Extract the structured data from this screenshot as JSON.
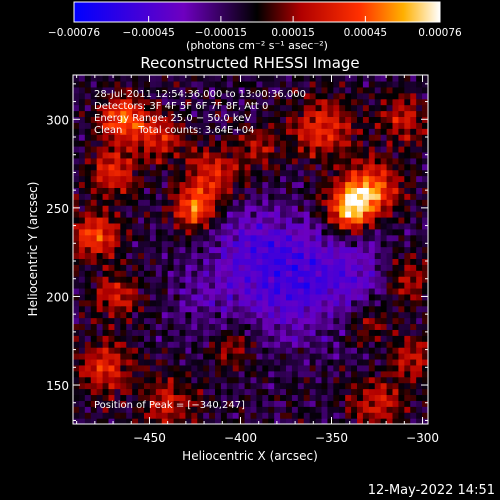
{
  "chart_data": {
    "type": "heatmap",
    "title": "Reconstructed RHESSI Image",
    "xlabel": "Heliocentric X (arcsec)",
    "ylabel": "Heliocentric Y (arcsec)",
    "xlim": [
      -492,
      -297
    ],
    "ylim": [
      128,
      325
    ],
    "x_ticks": [
      -450,
      -400,
      -350,
      -300
    ],
    "x_tick_labels": [
      "−450",
      "−400",
      "−350",
      "−300"
    ],
    "y_ticks": [
      150,
      200,
      250,
      300
    ],
    "y_tick_labels": [
      "150",
      "200",
      "250",
      "300"
    ],
    "colorbar": {
      "range": [
        -0.00076,
        0.00076
      ],
      "ticks": [
        -0.00076,
        -0.00045,
        -0.00015,
        0.00015,
        0.00045,
        0.00076
      ],
      "tick_labels": [
        "−0.00076",
        "−0.00045",
        "−0.00015",
        "0.00015",
        "0.00045",
        "0.00076"
      ],
      "unit_label": "(photons cm⁻² s⁻¹ asec⁻²)"
    },
    "annotations": [
      "28-Jul-2011 12:54:36.000 to 13:00:36.000",
      "Detectors: 3F 4F 5F 6F 7F 8F, Att 0",
      "Energy Range: 25.0 − 50.0 keV",
      "Clean     Total counts: 3.64E+04"
    ],
    "peak_label": "Position of Peak = [−340,247]",
    "peak": {
      "x": -340,
      "y": 247
    },
    "sources": [
      {
        "x": -340,
        "y": 250,
        "amp": 1.0,
        "sigma": 9
      },
      {
        "x": -328,
        "y": 262,
        "amp": 0.75,
        "sigma": 10
      },
      {
        "x": -355,
        "y": 295,
        "amp": 0.55,
        "sigma": 12
      },
      {
        "x": -425,
        "y": 250,
        "amp": 0.75,
        "sigma": 8
      },
      {
        "x": -415,
        "y": 270,
        "amp": 0.55,
        "sigma": 10
      },
      {
        "x": -465,
        "y": 300,
        "amp": 0.75,
        "sigma": 9
      },
      {
        "x": -480,
        "y": 235,
        "amp": 0.7,
        "sigma": 9
      },
      {
        "x": -470,
        "y": 270,
        "amp": 0.55,
        "sigma": 9
      },
      {
        "x": -445,
        "y": 290,
        "amp": 0.5,
        "sigma": 9
      },
      {
        "x": -468,
        "y": 200,
        "amp": 0.45,
        "sigma": 9
      },
      {
        "x": -475,
        "y": 160,
        "amp": 0.55,
        "sigma": 10
      },
      {
        "x": -440,
        "y": 140,
        "amp": 0.45,
        "sigma": 10
      },
      {
        "x": -405,
        "y": 170,
        "amp": 0.35,
        "sigma": 8
      },
      {
        "x": -325,
        "y": 140,
        "amp": 0.45,
        "sigma": 10
      },
      {
        "x": -305,
        "y": 165,
        "amp": 0.4,
        "sigma": 9
      },
      {
        "x": -308,
        "y": 210,
        "amp": 0.4,
        "sigma": 9
      },
      {
        "x": -330,
        "y": 185,
        "amp": 0.3,
        "sigma": 8
      },
      {
        "x": -390,
        "y": 285,
        "amp": 0.35,
        "sigma": 8
      },
      {
        "x": -310,
        "y": 300,
        "amp": 0.45,
        "sigma": 9
      }
    ],
    "sinks": [
      {
        "x": -370,
        "y": 210,
        "amp": 0.55,
        "sigma": 22
      },
      {
        "x": -395,
        "y": 230,
        "amp": 0.3,
        "sigma": 15
      },
      {
        "x": -335,
        "y": 215,
        "amp": 0.25,
        "sigma": 14
      },
      {
        "x": -420,
        "y": 200,
        "amp": 0.2,
        "sigma": 14
      }
    ],
    "grid": false
  },
  "footer": {
    "timestamp": "12-May-2022 14:51"
  },
  "colors": {
    "background": "#000000",
    "text": "#ffffff"
  }
}
